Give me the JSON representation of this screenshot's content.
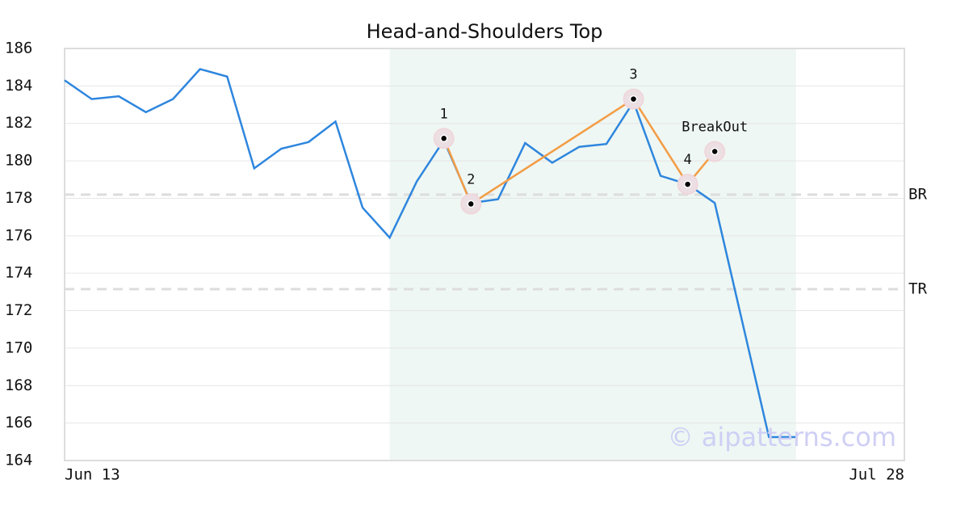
{
  "chart_data": {
    "type": "line",
    "title": "Head-and-Shoulders Top",
    "categories": [
      "Jun 13",
      null,
      null,
      null,
      null,
      null,
      null,
      null,
      null,
      null,
      null,
      null,
      null,
      null,
      null,
      null,
      null,
      null,
      null,
      null,
      null,
      null,
      null,
      null,
      null,
      null,
      null,
      null,
      null,
      null,
      null,
      "Jul 28"
    ],
    "series": [
      {
        "color": "#2e86de",
        "values": [
          184.3,
          183.3,
          183.45,
          182.6,
          183.3,
          184.9,
          184.5,
          179.6,
          180.65,
          181.0,
          182.1,
          177.5,
          175.9,
          178.9,
          181.1,
          177.75,
          177.95,
          180.95,
          179.9,
          180.75,
          180.9,
          183.15,
          179.2,
          178.75,
          177.75,
          171.5,
          165.25,
          165.25,
          null,
          null,
          null,
          null
        ]
      }
    ],
    "ylim": [
      164,
      186
    ],
    "yticks": [
      164,
      166,
      168,
      170,
      172,
      174,
      176,
      178,
      180,
      182,
      184,
      186
    ],
    "grid": true,
    "highlight": {
      "start": 12,
      "end": 27,
      "color": "#eef7f3"
    },
    "pattern": {
      "color": "#f39c45",
      "points": [
        {
          "label": "1",
          "x": 14,
          "value": 181.2
        },
        {
          "label": "2",
          "x": 15,
          "value": 177.7
        },
        {
          "label": "3",
          "x": 21,
          "value": 183.3
        },
        {
          "label": "4",
          "x": 23,
          "value": 178.75
        },
        {
          "label": "BreakOut",
          "x": 24,
          "value": 180.5
        }
      ]
    },
    "levels": [
      {
        "label": "BR",
        "value": 178.2
      },
      {
        "label": "TR",
        "value": 173.15
      }
    ],
    "watermark": "© aipatterns.com"
  }
}
